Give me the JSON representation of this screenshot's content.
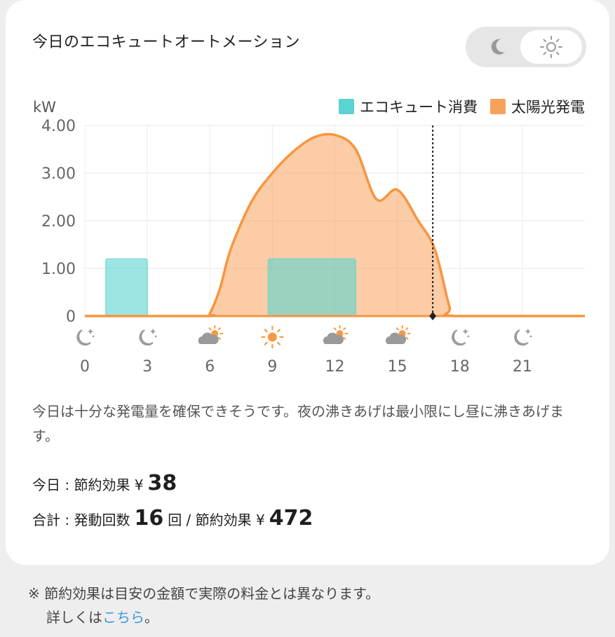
{
  "header": {
    "title": "今日のエコキュートオートメーション"
  },
  "theme_toggle": {
    "selected": "light"
  },
  "chart_data": {
    "type": "area",
    "unit_label": "kW",
    "y_ticks": [
      "4.00",
      "3.00",
      "2.00",
      "1.00",
      "0"
    ],
    "ylim": [
      0,
      4
    ],
    "xlim": [
      0,
      24
    ],
    "x_ticks": [
      "0",
      "3",
      "6",
      "9",
      "12",
      "15",
      "18",
      "21"
    ],
    "weather_icons": [
      {
        "hour": 0,
        "icon": "moon-stars-icon"
      },
      {
        "hour": 3,
        "icon": "moon-stars-icon"
      },
      {
        "hour": 6,
        "icon": "cloud-sun-icon"
      },
      {
        "hour": 9,
        "icon": "sun-icon"
      },
      {
        "hour": 12,
        "icon": "cloud-sun-icon"
      },
      {
        "hour": 15,
        "icon": "cloud-sun-icon"
      },
      {
        "hour": 18,
        "icon": "moon-stars-icon"
      },
      {
        "hour": 21,
        "icon": "moon-stars-icon"
      }
    ],
    "legend": [
      "エコキュート消費",
      "太陽光発電"
    ],
    "colors": {
      "ecocute": "#5ad3d1",
      "solar": "#f7a25c"
    },
    "series": [
      {
        "name": "太陽光発電",
        "x": [
          0,
          5.8,
          6.0,
          6.5,
          7.0,
          8.0,
          9.0,
          10.0,
          11.0,
          12.0,
          13.0,
          14.0,
          15.0,
          16.0,
          16.8,
          17.5,
          17.8,
          24
        ],
        "values": [
          0,
          0,
          0.05,
          0.6,
          1.4,
          2.4,
          3.0,
          3.45,
          3.75,
          3.8,
          3.5,
          2.45,
          2.65,
          2.0,
          1.4,
          0.2,
          0,
          0
        ]
      },
      {
        "name": "エコキュート消費",
        "blocks": [
          {
            "start": 1.0,
            "end": 3.0,
            "value": 1.2
          },
          {
            "start": 8.8,
            "end": 13.0,
            "value": 1.2
          }
        ]
      }
    ],
    "current_time_hour": 16.7
  },
  "description": "今日は十分な発電量を確保できそうです。夜の沸きあげは最小限にし昼に沸きあげます。",
  "today_stat": {
    "label": "今日 : 節約効果 ¥",
    "amount": "38"
  },
  "total_stat": {
    "label": "合計 : 発動回数",
    "count": "16",
    "count_unit": "回 / 節約効果 ¥",
    "amount": "472"
  },
  "footnote": {
    "line1": "※ 節約効果は目安の金額で実際の料金とは異なります。",
    "line2_prefix": "詳しくは",
    "link": "こちら",
    "line2_suffix": "。"
  }
}
